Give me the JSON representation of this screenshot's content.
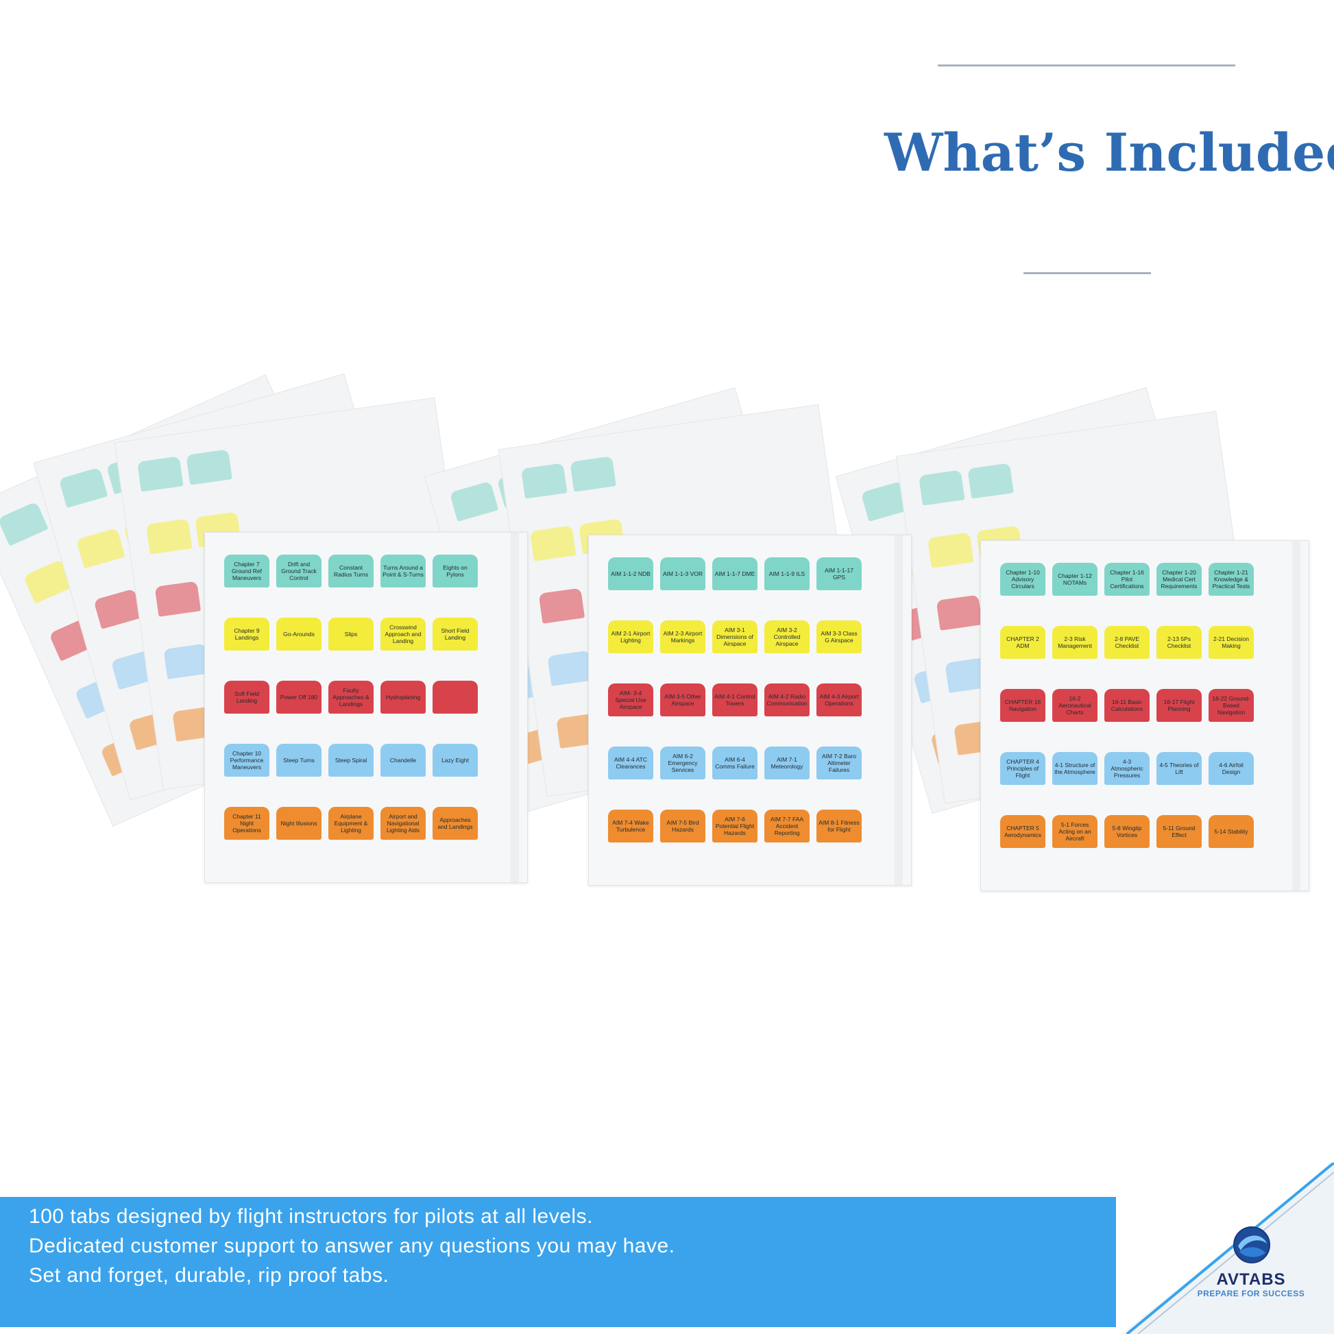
{
  "header": {
    "title": "What’s Included?"
  },
  "sheets": [
    {
      "rows": [
        {
          "color": "#7fd5c8",
          "tabs": [
            "Chapter 7 Ground Ref Maneuvers",
            "Drift and Ground Track Control",
            "Constant Radius Turns",
            "Turns Around a Point & S-Turns",
            "Eights on Pylons"
          ]
        },
        {
          "color": "#f4ec3a",
          "tabs": [
            "Chapter 9 Landings",
            "Go-Arounds",
            "Slips",
            "Crosswind Approach and Landing",
            "Short Field Landing"
          ]
        },
        {
          "color": "#d8424b",
          "tabs": [
            "Soft Field Landing",
            "Power Off 180",
            "Faulty Approaches & Landings",
            "Hydroplaning",
            ""
          ]
        },
        {
          "color": "#8ecbf0",
          "tabs": [
            "Chapter 10 Performance Maneuvers",
            "Steep Turns",
            "Steep Spiral",
            "Chandelle",
            "Lazy Eight"
          ]
        },
        {
          "color": "#ee8c2f",
          "tabs": [
            "Chapter 11 Night Operations",
            "Night Illusions",
            "Airplane Equipment & Lighting",
            "Airport and Navigational Lighting Aids",
            "Approaches and Landings"
          ]
        }
      ]
    },
    {
      "rows": [
        {
          "color": "#7fd5c8",
          "tabs": [
            "AIM 1-1-2 NDB",
            "AIM 1-1-3 VOR",
            "AIM 1-1-7 DME",
            "AIM 1-1-9 ILS",
            "AIM 1-1-17 GPS"
          ]
        },
        {
          "color": "#f4ec3a",
          "tabs": [
            "AIM 2-1 Airport Lighting",
            "AIM 2-3 Airport Markings",
            "AIM 3-1 Dimensions of Airspace",
            "AIM 3-2 Controlled Airspace",
            "AIM 3-3 Class G Airspace"
          ]
        },
        {
          "color": "#d8424b",
          "tabs": [
            "AIM- 3-4 Special Use Airspace",
            "AIM 3-5 Other Airspace",
            "AIM 4-1 Control Towers",
            "AIM 4-2 Radio Communication",
            "AIM 4-3 Airport Operations"
          ]
        },
        {
          "color": "#8ecbf0",
          "tabs": [
            "AIM 4-4 ATC Clearances",
            "AIM 6-2 Emergency Services",
            "AIM 6-4 Comms Failure",
            "AIM 7-1 Meteorology",
            "AIM 7-2 Baro Altimeter Failures"
          ]
        },
        {
          "color": "#ee8c2f",
          "tabs": [
            "AIM 7-4 Wake Turbulence",
            "AIM 7-5 Bird Hazards",
            "AIM 7-6 Potential Flight Hazards",
            "AIM 7-7 FAA Accident Reporting",
            "AIM 8-1 Fitness for Flight"
          ]
        }
      ]
    },
    {
      "rows": [
        {
          "color": "#7fd5c8",
          "tabs": [
            "Chapter 1-10 Advisory Circulars",
            "Chapter 1-12 NOTAMs",
            "Chapter 1-16 Pilot Certifications",
            "Chapter 1-20 Medical Cert Requirements",
            "Chapter 1-21 Knowledge & Practical Tests"
          ]
        },
        {
          "color": "#f4ec3a",
          "tabs": [
            "CHAPTER 2 ADM",
            "2-3 Risk Management",
            "2-8 PAVE Checklist",
            "2-13 5Ps Checklist",
            "2-21 Decision Making"
          ]
        },
        {
          "color": "#d8424b",
          "tabs": [
            "CHAPTER 16 Navigation",
            "16-2 Aeronautical Charts",
            "16-11 Basic Calculations",
            "16-17 Flight Planning",
            "16-22 Ground-Based Navigation"
          ]
        },
        {
          "color": "#8ecbf0",
          "tabs": [
            "CHAPTER 4 Principles of Flight",
            "4-1 Structure of the Atmosphere",
            "4-3 Atmospheric Pressures",
            "4-5 Theories of Lift",
            "4-6 Airfoil Design"
          ]
        },
        {
          "color": "#ee8c2f",
          "tabs": [
            "CHAPTER 5 Aerodynamics",
            "5-1 Forces Acting on an Aircraft",
            "5-8 Wingtip Vortices",
            "5-11 Ground Effect",
            "5-14 Stability"
          ]
        }
      ]
    }
  ],
  "banner": {
    "lines": [
      "100 tabs designed by flight instructors for pilots at all levels.",
      "Dedicated customer support to answer any questions you may have.",
      "Set and forget, durable, rip proof tabs."
    ],
    "color": "#3aa3ec"
  },
  "brand": {
    "name": "AVTABS",
    "tagline": "PREPARE FOR SUCCESS",
    "color": "#1d2f6a",
    "icon": "globe-swirl-icon"
  }
}
